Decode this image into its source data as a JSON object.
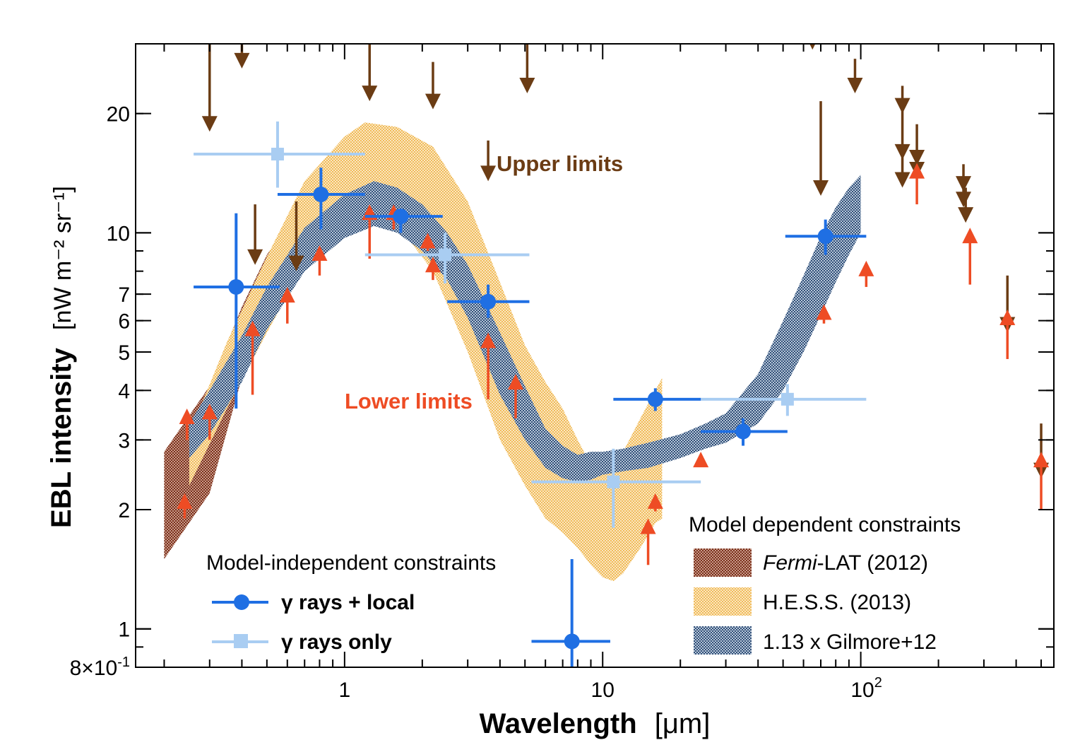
{
  "chart_data": {
    "type": "scatter",
    "title": "",
    "xlabel": "Wavelength",
    "xunit": "[μm]",
    "ylabel": "EBL intensity",
    "yunit": "[nW m⁻² sr⁻¹]",
    "xscale": "log",
    "yscale": "log",
    "xlim": [
      0.155,
      560
    ],
    "ylim": [
      0.8,
      30
    ],
    "xticks": [
      {
        "value": 1,
        "label": "1"
      },
      {
        "value": 10,
        "label": "10"
      },
      {
        "value": 100,
        "label": "10",
        "sup": "2"
      }
    ],
    "yticks": [
      {
        "value": 0.8,
        "label": "8×10",
        "sup": "-1"
      },
      {
        "value": 1,
        "label": "1"
      },
      {
        "value": 2,
        "label": "2"
      },
      {
        "value": 3,
        "label": "3"
      },
      {
        "value": 4,
        "label": "4"
      },
      {
        "value": 5,
        "label": "5"
      },
      {
        "value": 6,
        "label": "6"
      },
      {
        "value": 7,
        "label": "7"
      },
      {
        "value": 10,
        "label": "10"
      },
      {
        "value": 20,
        "label": "20"
      }
    ],
    "colors": {
      "gamma_local": "#1f6fe3",
      "gamma_only": "#a9cdf2",
      "upper": "#6b3c14",
      "lower": "#ee4c24",
      "fermi": "#8b3d28",
      "hess": "#f2c062",
      "gilmore": "#3e5f8a"
    },
    "bands": [
      {
        "name": "fermi",
        "label_italic": "Fermi",
        "label_rest": "-LAT (2012)",
        "x": [
          0.2,
          0.3,
          0.4,
          0.5,
          0.62,
          0.7
        ],
        "lo": [
          1.5,
          2.2,
          4.3,
          6.4,
          8.6,
          9.4
        ],
        "hi": [
          2.8,
          4.1,
          6.5,
          8.8,
          10.8,
          11.4
        ]
      },
      {
        "name": "hess",
        "label": "H.E.S.S. (2013)",
        "x": [
          0.25,
          0.35,
          0.5,
          0.7,
          1.0,
          1.2,
          1.6,
          2.2,
          3.0,
          4.0,
          5.0,
          6.0,
          7.0,
          8.0,
          9.0,
          10,
          11,
          12,
          14,
          16,
          17
        ],
        "lo": [
          2.3,
          3.6,
          5.6,
          8.3,
          10.8,
          11.3,
          10.5,
          8.0,
          5.0,
          3.0,
          2.3,
          1.9,
          1.75,
          1.6,
          1.45,
          1.35,
          1.32,
          1.38,
          1.6,
          1.85,
          1.9
        ],
        "hi": [
          3.1,
          5.3,
          8.7,
          13.5,
          17.5,
          19.0,
          18.5,
          16.5,
          12.0,
          7.5,
          5.2,
          4.2,
          3.6,
          3.0,
          2.6,
          2.5,
          2.6,
          2.8,
          3.4,
          4.0,
          4.3
        ]
      },
      {
        "name": "gilmore",
        "label": "1.13 x Gilmore+12",
        "x": [
          0.25,
          0.3,
          0.4,
          0.5,
          0.7,
          1.0,
          1.3,
          1.6,
          2.0,
          2.5,
          3.0,
          4.0,
          5.0,
          6.0,
          7.0,
          8.0,
          9.0,
          10,
          12,
          15,
          20,
          25,
          30,
          40,
          50,
          60,
          70,
          80,
          90,
          100
        ],
        "lo": [
          2.7,
          3.1,
          4.2,
          5.7,
          8.0,
          9.7,
          10.4,
          10.0,
          9.0,
          7.6,
          6.1,
          3.9,
          3.0,
          2.55,
          2.4,
          2.35,
          2.38,
          2.45,
          2.5,
          2.55,
          2.7,
          2.85,
          2.95,
          3.3,
          4.0,
          5.0,
          6.2,
          7.5,
          8.8,
          10.0
        ],
        "hi": [
          3.3,
          4.0,
          5.5,
          7.3,
          10.3,
          12.5,
          13.5,
          13.0,
          11.8,
          10.0,
          8.3,
          5.6,
          4.1,
          3.2,
          2.9,
          2.75,
          2.8,
          2.8,
          2.85,
          2.95,
          3.1,
          3.3,
          3.5,
          4.4,
          6.0,
          7.8,
          9.8,
          11.6,
          13.0,
          14.0
        ]
      }
    ],
    "series": [
      {
        "name": "gamma_local",
        "label": "γ rays + local",
        "marker": "circle",
        "points": [
          {
            "x": 0.38,
            "y": 7.3,
            "xlo": 0.26,
            "xhi": 0.56,
            "ylo": 3.6,
            "yhi": 11.2
          },
          {
            "x": 0.81,
            "y": 12.5,
            "xlo": 0.55,
            "xhi": 1.2,
            "ylo": 10.2,
            "yhi": 14.6
          },
          {
            "x": 1.65,
            "y": 11.0,
            "xlo": 1.2,
            "xhi": 2.4,
            "ylo": 10.0,
            "yhi": 11.3
          },
          {
            "x": 3.6,
            "y": 6.7,
            "xlo": 2.5,
            "xhi": 5.2,
            "ylo": 6.1,
            "yhi": 7.4
          },
          {
            "x": 7.6,
            "y": 0.93,
            "xlo": 5.3,
            "xhi": 10.7,
            "ylo": 0.8,
            "yhi": 1.5
          },
          {
            "x": 16,
            "y": 3.8,
            "xlo": 11,
            "xhi": 24,
            "ylo": 3.55,
            "yhi": 4.05
          },
          {
            "x": 35,
            "y": 3.15,
            "xlo": 24,
            "xhi": 52,
            "ylo": 2.9,
            "yhi": 3.4
          },
          {
            "x": 73,
            "y": 9.8,
            "xlo": 51,
            "xhi": 105,
            "ylo": 8.8,
            "yhi": 10.8
          }
        ]
      },
      {
        "name": "gamma_only",
        "label": "γ rays only",
        "marker": "square",
        "points": [
          {
            "x": 0.55,
            "y": 15.8,
            "xlo": 0.26,
            "xhi": 1.2,
            "ylo": 13.0,
            "yhi": 19.1
          },
          {
            "x": 2.45,
            "y": 8.8,
            "xlo": 1.2,
            "xhi": 5.2,
            "ylo": 7.45,
            "yhi": 10.0
          },
          {
            "x": 11,
            "y": 2.35,
            "xlo": 5.3,
            "xhi": 24,
            "ylo": 1.8,
            "yhi": 2.85
          },
          {
            "x": 52,
            "y": 3.8,
            "xlo": 24,
            "xhi": 105,
            "ylo": 3.45,
            "yhi": 4.15
          }
        ]
      }
    ],
    "upper_limits": [
      {
        "x": 0.3,
        "y": 18.0,
        "top": 30
      },
      {
        "x": 0.4,
        "y": 26.0,
        "top": 30
      },
      {
        "x": 0.45,
        "y": 8.3,
        "top": 11.8
      },
      {
        "x": 0.65,
        "y": 8.0,
        "top": 12.0
      },
      {
        "x": 1.25,
        "y": 21.5,
        "top": 30
      },
      {
        "x": 2.2,
        "y": 20.5,
        "top": 27.0
      },
      {
        "x": 3.6,
        "y": 13.5,
        "top": 17.1
      },
      {
        "x": 5.1,
        "y": 22.5,
        "top": 30
      },
      {
        "x": 65,
        "y": 29.0,
        "top": 30
      },
      {
        "x": 70,
        "y": 12.4,
        "top": 21.5
      },
      {
        "x": 95,
        "y": 22.5,
        "top": 27.5
      },
      {
        "x": 145,
        "y": 20.0,
        "top": 23.5
      },
      {
        "x": 145,
        "y": 15.3,
        "top": 20.5
      },
      {
        "x": 145,
        "y": 13.0,
        "top": 15.8
      },
      {
        "x": 165,
        "y": 14.8,
        "top": 18.8
      },
      {
        "x": 165,
        "y": 13.8,
        "top": 15.5
      },
      {
        "x": 250,
        "y": 12.7,
        "top": 14.9
      },
      {
        "x": 250,
        "y": 11.6,
        "top": 13.5
      },
      {
        "x": 255,
        "y": 10.6,
        "top": 13.0
      },
      {
        "x": 370,
        "y": 5.6,
        "top": 7.8
      },
      {
        "x": 500,
        "y": 2.4,
        "top": 3.3
      }
    ],
    "lower_limits": [
      {
        "x": 0.24,
        "y": 2.2,
        "bottom": 1.9
      },
      {
        "x": 0.245,
        "y": 3.6,
        "bottom": 3.0
      },
      {
        "x": 0.3,
        "y": 3.7,
        "bottom": 3.0
      },
      {
        "x": 0.44,
        "y": 6.0,
        "bottom": 3.9
      },
      {
        "x": 0.6,
        "y": 7.3,
        "bottom": 5.9
      },
      {
        "x": 0.8,
        "y": 9.3,
        "bottom": 7.8
      },
      {
        "x": 1.25,
        "y": 11.8,
        "bottom": 8.6
      },
      {
        "x": 1.55,
        "y": 11.8,
        "bottom": 10.2
      },
      {
        "x": 2.1,
        "y": 10.0,
        "bottom": 9.0
      },
      {
        "x": 2.2,
        "y": 8.7,
        "bottom": 7.6
      },
      {
        "x": 3.6,
        "y": 5.6,
        "bottom": 3.8
      },
      {
        "x": 4.6,
        "y": 4.4,
        "bottom": 3.4
      },
      {
        "x": 15,
        "y": 1.9,
        "bottom": 1.45
      },
      {
        "x": 16,
        "y": 2.2,
        "bottom": 1.98
      },
      {
        "x": 24,
        "y": 2.8,
        "bottom": 2.62
      },
      {
        "x": 72,
        "y": 6.6,
        "bottom": 5.9
      },
      {
        "x": 105,
        "y": 8.5,
        "bottom": 7.3
      },
      {
        "x": 165,
        "y": 15.0,
        "bottom": 11.8
      },
      {
        "x": 265,
        "y": 10.3,
        "bottom": 7.4
      },
      {
        "x": 370,
        "y": 6.4,
        "bottom": 4.8
      },
      {
        "x": 500,
        "y": 2.8,
        "bottom": 2.0
      }
    ],
    "annotations": {
      "upper": "Upper limits",
      "lower": "Lower limits"
    },
    "legend_model_independent": {
      "title": "Model-independent constraints",
      "placement": "bottom-left"
    },
    "legend_model_dependent": {
      "title": "Model dependent constraints",
      "placement": "bottom-right"
    }
  }
}
